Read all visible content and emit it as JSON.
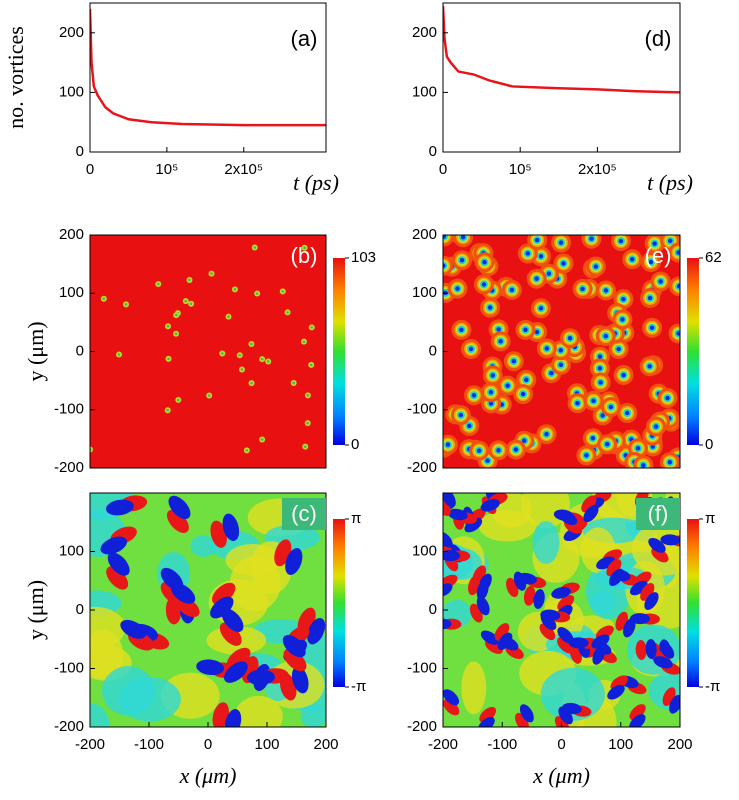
{
  "chart_data": [
    {
      "type": "line",
      "label": "(a)",
      "ylabel": "no. vortices",
      "xlabel": "t (ps)",
      "color": "#e8141b",
      "x": [
        0,
        2000,
        5000,
        10000,
        20000,
        30000,
        50000,
        80000,
        120000,
        200000,
        307000
      ],
      "values": [
        240,
        150,
        110,
        95,
        75,
        65,
        55,
        50,
        47,
        45,
        45
      ],
      "xlim": [
        0,
        307000
      ],
      "ylim": [
        0,
        250
      ],
      "xticks": [
        0,
        {
          "value": 100000,
          "label": "10⁵"
        },
        {
          "value": 200000,
          "label": "2x10⁵"
        }
      ],
      "yticks": [
        0,
        100,
        200
      ]
    },
    {
      "type": "line",
      "label": "(d)",
      "xlabel": "t (ps)",
      "color": "#e8141b",
      "x": [
        0,
        2000,
        5000,
        10000,
        20000,
        40000,
        60000,
        90000,
        150000,
        200000,
        250000,
        307000
      ],
      "values": [
        245,
        190,
        160,
        150,
        135,
        130,
        120,
        110,
        107,
        105,
        102,
        100
      ],
      "xlim": [
        0,
        307000
      ],
      "ylim": [
        0,
        250
      ],
      "xticks": [
        0,
        {
          "value": 100000,
          "label": "10⁵"
        },
        {
          "value": 200000,
          "label": "2x10⁵"
        }
      ],
      "yticks": [
        0,
        100,
        200
      ]
    },
    {
      "type": "density",
      "label": "(b)",
      "ylabel": "y (μm)",
      "xlim": [
        -200,
        200
      ],
      "ylim": [
        -200,
        200
      ],
      "yticks": [
        -200,
        -100,
        0,
        100,
        200
      ],
      "clim": [
        0,
        103
      ],
      "cticks": [
        0,
        103
      ]
    },
    {
      "type": "density",
      "label": "(e)",
      "xlim": [
        -200,
        200
      ],
      "ylim": [
        -200,
        200
      ],
      "yticks": [
        -200,
        -100,
        0,
        100,
        200
      ],
      "clim": [
        0,
        62
      ],
      "cticks": [
        0,
        62
      ]
    },
    {
      "type": "phase",
      "label": "(c)",
      "ylabel": "y (μm)",
      "xlabel": "x (μm)",
      "xlim": [
        -200,
        200
      ],
      "ylim": [
        -200,
        200
      ],
      "xticks": [
        -200,
        -100,
        0,
        100,
        200
      ],
      "yticks": [
        -200,
        -100,
        0,
        100
      ],
      "clim": [
        -3.14159,
        3.14159
      ],
      "cticks": [
        {
          "value": -3.14159,
          "label": "-π"
        },
        {
          "value": 3.14159,
          "label": "π"
        }
      ]
    },
    {
      "type": "phase",
      "label": "(f)",
      "xlabel": "x (μm)",
      "xlim": [
        -200,
        200
      ],
      "ylim": [
        -200,
        200
      ],
      "xticks": [
        -200,
        -100,
        0,
        100,
        200
      ],
      "yticks": [
        -200,
        -100,
        0,
        100
      ],
      "clim": [
        -3.14159,
        3.14159
      ],
      "cticks": [
        {
          "value": -3.14159,
          "label": "-π"
        },
        {
          "value": 3.14159,
          "label": "π"
        }
      ]
    }
  ]
}
